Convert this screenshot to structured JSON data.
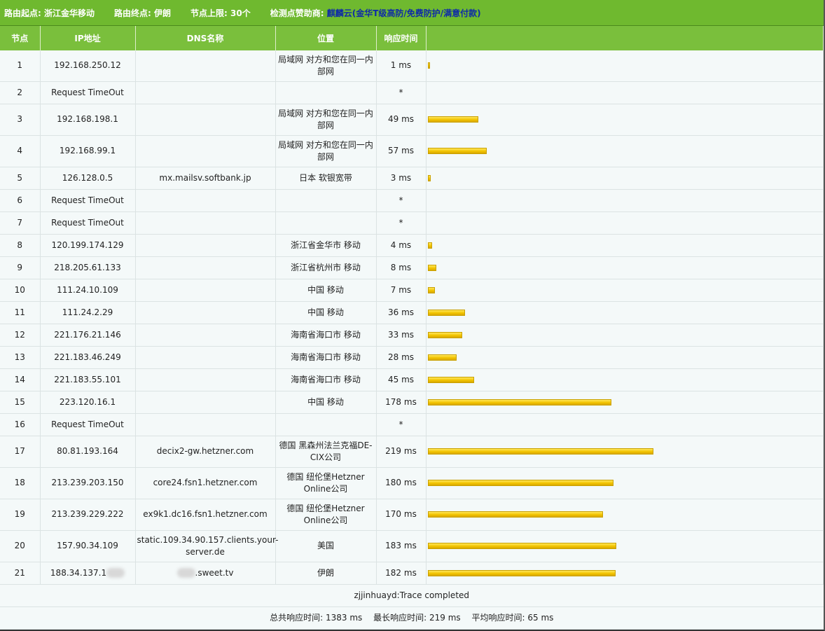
{
  "header": {
    "origin_label": "路由起点:",
    "origin_value": "浙江金华移动",
    "dest_label": "路由终点:",
    "dest_value": "伊朗",
    "limit_label": "节点上限:",
    "limit_value": "30个",
    "sponsor_label": "检测点赞助商:",
    "sponsor_name": "麒麟云",
    "sponsor_link": "(金华T级高防/免费防护/满意付款)"
  },
  "columns": [
    "节点",
    "IP地址",
    "DNS名称",
    "位置",
    "响应时间",
    ""
  ],
  "rows": [
    {
      "node": "1",
      "ip": "192.168.250.12",
      "dns": "",
      "loc": "局域网 对方和您在同一内部网",
      "time": "1 ms",
      "ms": 1,
      "h": 44
    },
    {
      "node": "2",
      "ip": "Request TimeOut",
      "dns": "",
      "loc": "",
      "time": "*",
      "ms": 0,
      "h": 32
    },
    {
      "node": "3",
      "ip": "192.168.198.1",
      "dns": "",
      "loc": "局域网 对方和您在同一内部网",
      "time": "49 ms",
      "ms": 49,
      "h": 45
    },
    {
      "node": "4",
      "ip": "192.168.99.1",
      "dns": "",
      "loc": "局域网 对方和您在同一内部网",
      "time": "57 ms",
      "ms": 57,
      "h": 45
    },
    {
      "node": "5",
      "ip": "126.128.0.5",
      "dns": "mx.mailsv.softbank.jp",
      "loc": "日本 软银宽带",
      "time": "3 ms",
      "ms": 3,
      "h": 32
    },
    {
      "node": "6",
      "ip": "Request TimeOut",
      "dns": "",
      "loc": "",
      "time": "*",
      "ms": 0,
      "h": 32
    },
    {
      "node": "7",
      "ip": "Request TimeOut",
      "dns": "",
      "loc": "",
      "time": "*",
      "ms": 0,
      "h": 32
    },
    {
      "node": "8",
      "ip": "120.199.174.129",
      "dns": "",
      "loc": "浙江省金华市 移动",
      "time": "4 ms",
      "ms": 4,
      "h": 32
    },
    {
      "node": "9",
      "ip": "218.205.61.133",
      "dns": "",
      "loc": "浙江省杭州市 移动",
      "time": "8 ms",
      "ms": 8,
      "h": 32
    },
    {
      "node": "10",
      "ip": "111.24.10.109",
      "dns": "",
      "loc": "中国 移动",
      "time": "7 ms",
      "ms": 7,
      "h": 32
    },
    {
      "node": "11",
      "ip": "111.24.2.29",
      "dns": "",
      "loc": "中国 移动",
      "time": "36 ms",
      "ms": 36,
      "h": 32
    },
    {
      "node": "12",
      "ip": "221.176.21.146",
      "dns": "",
      "loc": "海南省海口市 移动",
      "time": "33 ms",
      "ms": 33,
      "h": 32
    },
    {
      "node": "13",
      "ip": "221.183.46.249",
      "dns": "",
      "loc": "海南省海口市 移动",
      "time": "28 ms",
      "ms": 28,
      "h": 32
    },
    {
      "node": "14",
      "ip": "221.183.55.101",
      "dns": "",
      "loc": "海南省海口市 移动",
      "time": "45 ms",
      "ms": 45,
      "h": 32
    },
    {
      "node": "15",
      "ip": "223.120.16.1",
      "dns": "",
      "loc": "中国 移动",
      "time": "178 ms",
      "ms": 178,
      "h": 32
    },
    {
      "node": "16",
      "ip": "Request TimeOut",
      "dns": "",
      "loc": "",
      "time": "*",
      "ms": 0,
      "h": 32
    },
    {
      "node": "17",
      "ip": "80.81.193.164",
      "dns": "decix2-gw.hetzner.com",
      "loc": "德国 黑森州法兰克福DE-CIX公司",
      "time": "219 ms",
      "ms": 219,
      "h": 45
    },
    {
      "node": "18",
      "ip": "213.239.203.150",
      "dns": "core24.fsn1.hetzner.com",
      "loc": "德国 纽伦堡Hetzner Online公司",
      "time": "180 ms",
      "ms": 180,
      "h": 45
    },
    {
      "node": "19",
      "ip": "213.239.229.222",
      "dns": "ex9k1.dc16.fsn1.hetzner.com",
      "loc": "德国 纽伦堡Hetzner Online公司",
      "time": "170 ms",
      "ms": 170,
      "h": 45
    },
    {
      "node": "20",
      "ip": "157.90.34.109",
      "dns": "static.109.34.90.157.clients.your-server.de",
      "loc": "美国",
      "time": "183 ms",
      "ms": 183,
      "h": 45
    },
    {
      "node": "21",
      "ip": "188.34.137.1",
      "dns": ".sweet.tv",
      "loc": "伊朗",
      "time": "182 ms",
      "ms": 182,
      "h": 32,
      "blur": true
    }
  ],
  "completed_text": "zjjinhuayd:Trace completed",
  "summary": {
    "total_label": "总共响应时间:",
    "total_value": "1383 ms",
    "max_label": "最长响应时间:",
    "max_value": "219 ms",
    "avg_label": "平均响应时间:",
    "avg_value": "65 ms"
  }
}
